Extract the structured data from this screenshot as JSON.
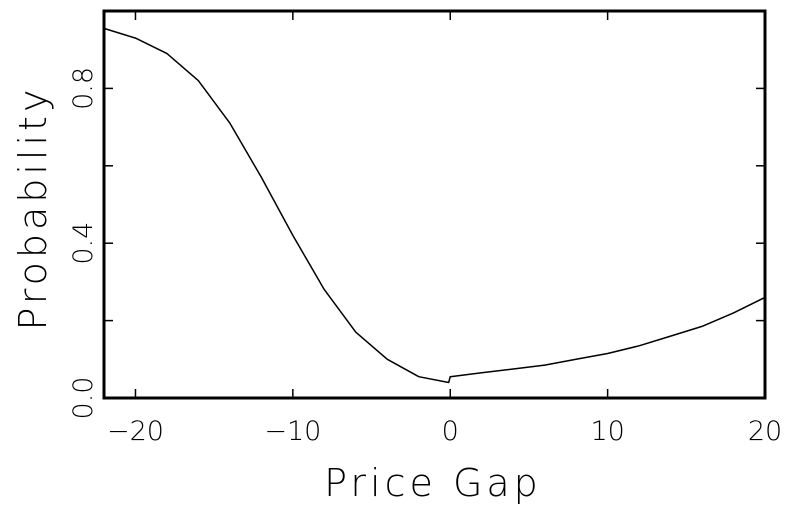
{
  "chart_data": {
    "type": "line",
    "xlabel": "Price Gap",
    "ylabel": "Probability",
    "xlim": [
      -22,
      20
    ],
    "ylim": [
      0,
      1
    ],
    "xticks": [
      -20,
      -10,
      0,
      10,
      20
    ],
    "xtick_labels": [
      "−20",
      "−10",
      "0",
      "10",
      "20"
    ],
    "yticks": [
      0,
      0.4,
      0.8
    ],
    "ytick_labels": [
      "0.0",
      "0.4",
      "0.8"
    ],
    "yminor_ticks": [
      0.2,
      0.6
    ],
    "grid": false,
    "series": [
      {
        "x": [
          -22,
          -20,
          -18,
          -16,
          -14,
          -12,
          -10,
          -8,
          -6,
          -4,
          -2,
          -0.1,
          0,
          2,
          4,
          6,
          8,
          10,
          12,
          14,
          16,
          18,
          20
        ],
        "y": [
          0.955,
          0.93,
          0.89,
          0.82,
          0.71,
          0.57,
          0.42,
          0.28,
          0.17,
          0.1,
          0.055,
          0.04,
          0.055,
          0.065,
          0.075,
          0.085,
          0.1,
          0.115,
          0.135,
          0.16,
          0.185,
          0.22,
          0.26
        ]
      }
    ],
    "line_color": "#000000"
  }
}
